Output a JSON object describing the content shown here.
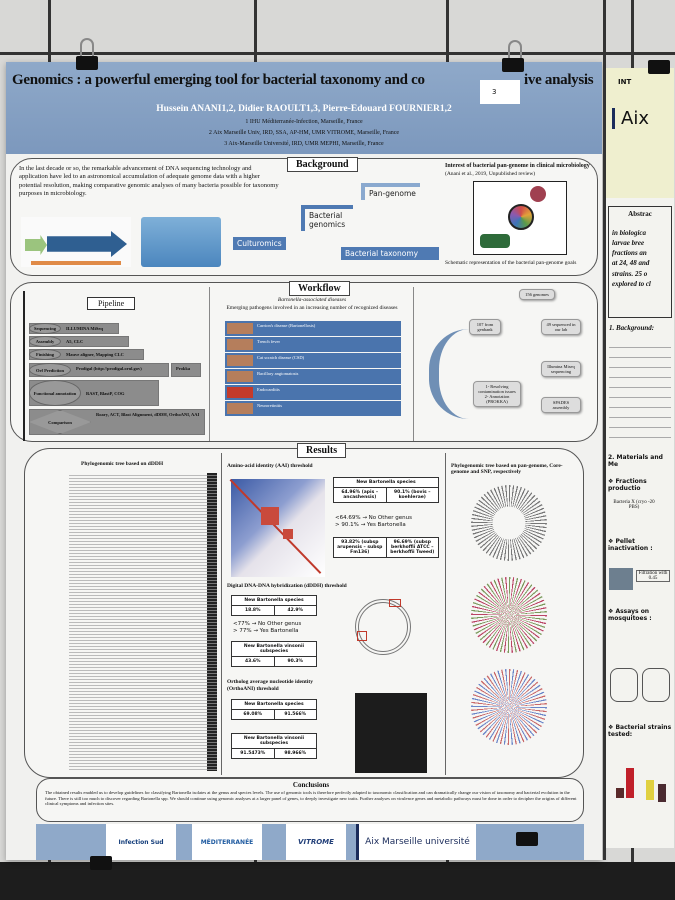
{
  "poster": {
    "title": "Genomics : a powerful emerging tool for bacterial taxonomy and co",
    "title_end": "ive analysis",
    "sticker_number": "3",
    "authors": "Hussein ANANI1,2, Didier RAOULT1,3, Pierre-Edouard FOURNIER1,2",
    "affiliations": [
      "1 IHU Méditerranée-Infection, Marseille, France",
      "2 Aix Marseille Univ, IRD, SSA, AP-HM, UMR VITROME, Marseille, France",
      "3 Aix-Marseille Université, IRD, UMR MEPHI, Marseille, France"
    ],
    "background": {
      "heading": "Background",
      "text": "In the last decade or so, the remarkable advancement of DNA sequencing technology and application have led to an astronomical accumulation of adequate genome data with a higher potential resolution, making comparative genomic analyses of many bacteria possible for taxonomy purposes in microbiology.",
      "stairs": [
        "Culturomics",
        "Bacterial genomics",
        "Pan-genome",
        "Bacterial taxonomy"
      ],
      "pangenome_title": "Interest of bacterial pan-genome in clinical microbiology",
      "pangenome_ref": "(Anani et al., 2019, Unpublished review)",
      "pangenome_caption": "Schematic representation of the bacterial pan-genome goals"
    },
    "workflow": {
      "heading": "Workflow",
      "pipeline_label": "Pipeline",
      "pipeline_steps": [
        {
          "step": "Sequencing",
          "tool": "ILLUMINA MiSeq"
        },
        {
          "step": "Assembly",
          "tool": "A5, CLC"
        },
        {
          "step": "Finishing",
          "tool": "Mauve aligner, Mapping CLC"
        },
        {
          "step": "Orf Prediction",
          "tool": "Prodigal (http://prodigal.ornl.gov)"
        },
        {
          "step": "Functional annotation",
          "tool": "RAST, BlastP, COG"
        },
        {
          "step": "Comparison",
          "tool": "Roary, ACT, Blast Alignment, dDDH, OrthoANI, AAI"
        }
      ],
      "prokka_label": "Prokka",
      "diseases_title": "Bartonella-associated diseases",
      "diseases_subtitle": "Emerging pathogens involved in an increasing number of recognized diseases",
      "diseases": [
        "Carrion's disease (Bartonellosis)",
        "Trench fever",
        "Cat scratch disease (CSD)",
        "Bacillary angiomatosis",
        "Endocarditis",
        "Neuroretinitis"
      ],
      "flow": {
        "total": "156 genomes",
        "genbank": "107 from genbank",
        "sequenced": "49 sequenced in our lab",
        "illumina": "Illumina Miseq sequencing",
        "spades": "SPADES assembly",
        "resolve": "1- Resolving contamination issues 2- Annotation (PROKKA)"
      }
    },
    "results": {
      "heading": "Results",
      "tree_title": "Phylogenomic tree based on dDDH",
      "aai_title": "Amino-acid identity (AAI) threshold",
      "aai_table": {
        "header": "New Bartonella species",
        "cells": [
          "64.96% (apis – ancashensis)",
          "90.1% (bovis – koehlerae)"
        ]
      },
      "aai_notes": [
        "<64.69% → No Other genus",
        "> 90.1% → Yes Bartonella"
      ],
      "aai_table2": {
        "cells": [
          "93.82% (subsp arupensis – subsp Fm136)",
          "96.69% (subsp berkhoffii ATCC – berkhoffii Tweed)"
        ]
      },
      "dddh_title": "Digital DNA-DNA hybridization (dDDH) threshold",
      "dddh_table": {
        "header": "New Bartonella species",
        "cells": [
          "18.8%",
          "42.9%"
        ]
      },
      "dddh_notes": [
        "<77% → No Other genus",
        "> 77% → Yes Bartonella"
      ],
      "dddh_table2": {
        "header": "New Bartonella vinsonii subspecies",
        "cells": [
          "43.6%",
          "90.3%"
        ]
      },
      "ani_title": "Ortholog average nucleotide identity (OrthoANI) threshold",
      "ani_table": {
        "header": "New Bartonella species",
        "cells": [
          "69.08%",
          "91.566%"
        ]
      },
      "ani_table2": {
        "header": "New Bartonella vinsonii subspecies",
        "cells": [
          "91.5473%",
          "98.966%"
        ]
      },
      "pan_title": "Phylogenomic tree based on pan-genome, Core-genome and SNP, respectively"
    },
    "conclusions": {
      "heading": "Conclusions",
      "text": "The obtained results enabled us to develop guidelines for classifying Bartonella isolates at the genus and species levels. The use of genomic tools is therefore perfectly adapted to taxonomic classification and can dramatically change our vision of taxonomy and bacterial evolution in the future. There is still too much to discover regarding Bartonella spp. We should continue using genomic analyses at a larger panel of genes, to deeply investigate new traits. Further analyses on virulence genes and metabolic pathways must be done in order to decipher the origins of different clinical symptoms and infection sites."
    },
    "logos": [
      "Infection Sud",
      "MÉDITERRANÉE",
      "VITROME",
      "Aix Marseille université"
    ]
  },
  "side_poster": {
    "header": "INT",
    "logo": "Aix",
    "abstract": "Abstrac",
    "abstract_lines": [
      "in biologica",
      "larvae bree",
      "fractions an",
      "at 24, 48 and",
      "strains. 25 o",
      "explored to cl"
    ],
    "sections": [
      "1. Background:",
      "2. Materials and Me",
      "❖ Fractions productio",
      "❖ Pellet inactivation :",
      "❖ Assays on mosquitoes :",
      "❖ Bacterial strains tested:"
    ],
    "bacteria_x": "Bacteria X (cryo -20 PBS)",
    "filtration": "Filtration with 0.45"
  }
}
